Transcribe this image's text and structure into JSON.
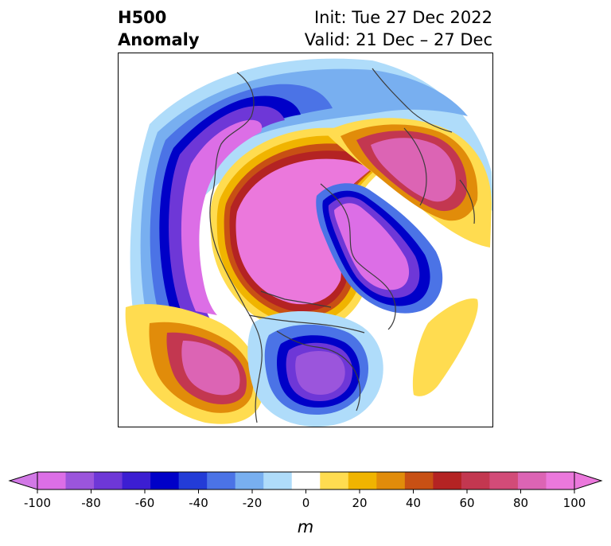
{
  "title": {
    "left_line1": "H500",
    "left_line2": "Anomaly",
    "right_line1": "Init: Tue 27 Dec 2022",
    "right_line2": "Valid: 21 Dec – 27 Dec"
  },
  "colorbar": {
    "label": "m",
    "ticks": [
      "-100",
      "-80",
      "-60",
      "-40",
      "-20",
      "0",
      "20",
      "40",
      "60",
      "80",
      "100"
    ],
    "levels": [
      -100,
      -90,
      -80,
      -70,
      -60,
      -50,
      -40,
      -30,
      -20,
      -10,
      10,
      20,
      30,
      40,
      50,
      60,
      70,
      80,
      90,
      100
    ],
    "colors": [
      "#dc6ee6",
      "#9b55dc",
      "#6e37d7",
      "#3c1ed2",
      "#0000c8",
      "#233cd7",
      "#4b73e6",
      "#78aff0",
      "#afdcfa",
      "#ffffff",
      "#ffdc50",
      "#f0b400",
      "#e18c0a",
      "#c85014",
      "#b42323",
      "#c33750",
      "#d24b78",
      "#dc64b4",
      "#eb78dc"
    ],
    "extend_low_color": "#d278e6",
    "extend_high_color": "#eb78dc"
  },
  "map": {
    "projection": "north polar stereographic",
    "features": [
      "coastlines",
      "country borders",
      "state/province borders"
    ]
  }
}
